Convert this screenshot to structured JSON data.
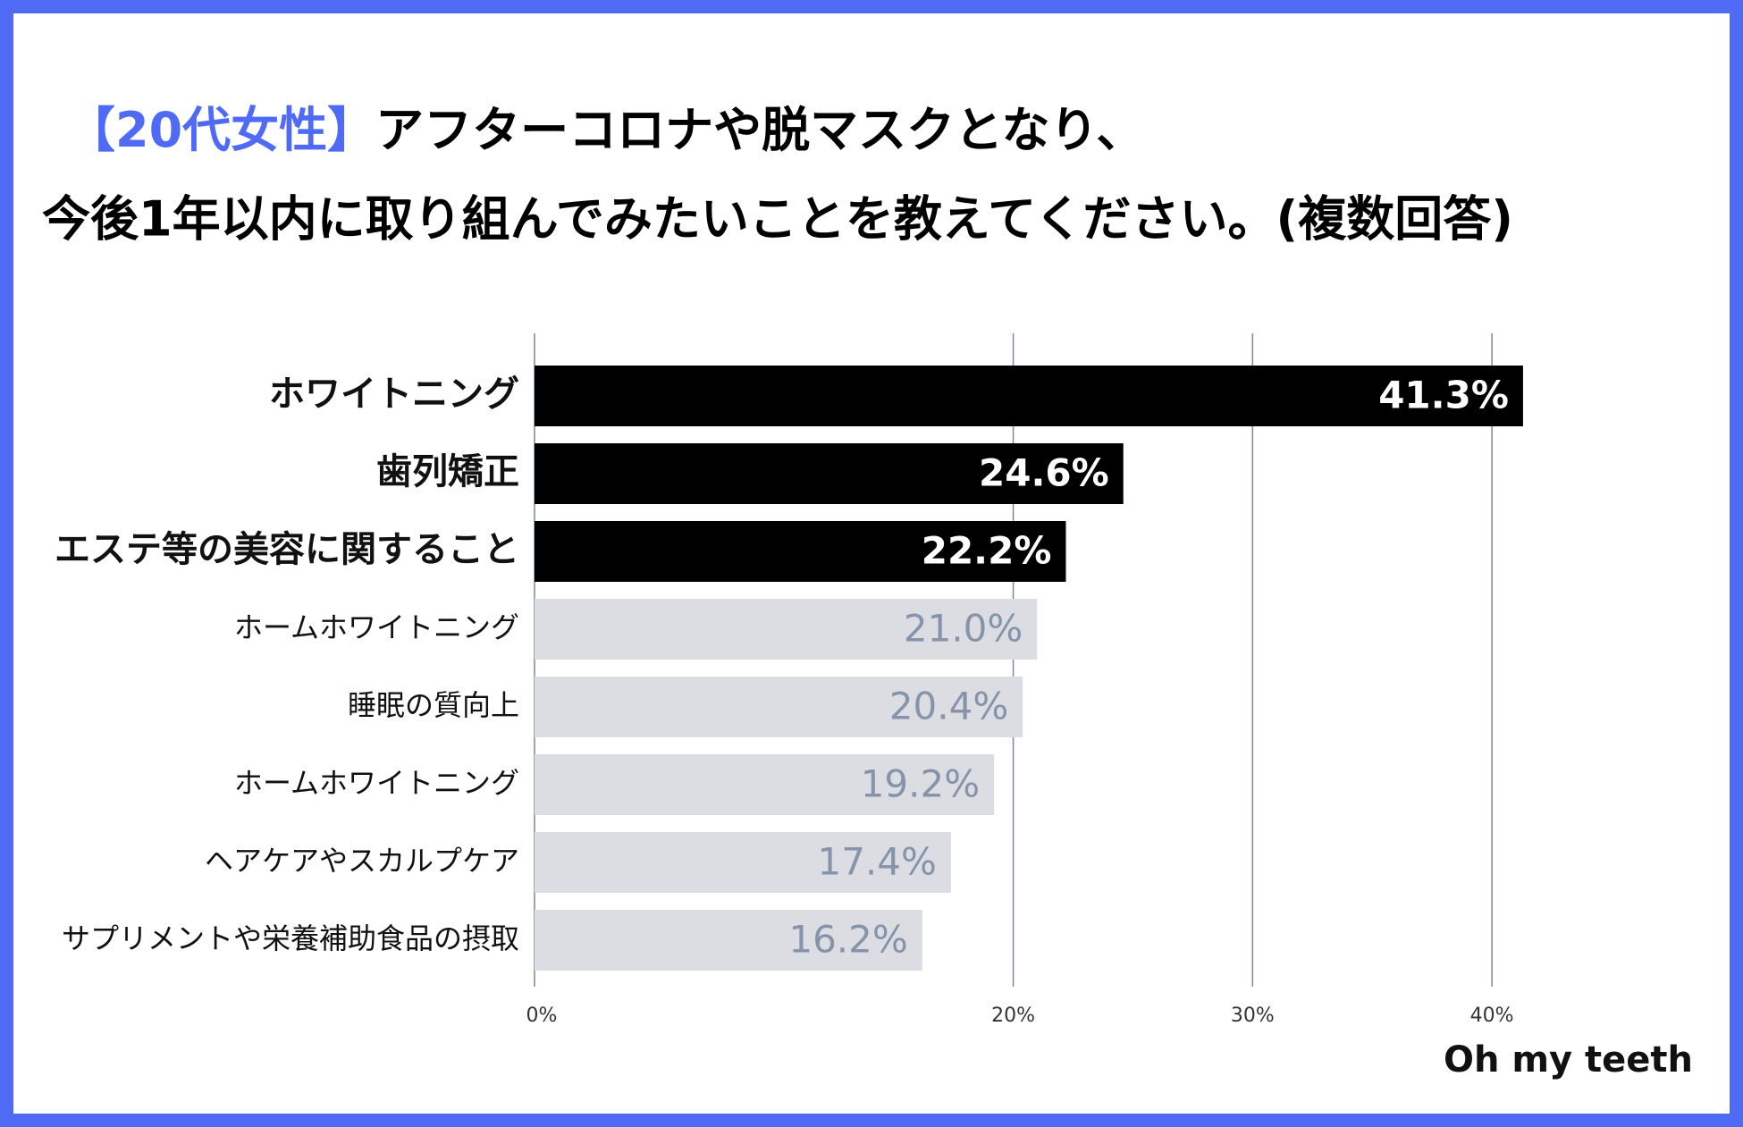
{
  "chart_data": {
    "type": "barh",
    "title_highlight": "【20代女性】",
    "title_line1": "アフターコロナや脱マスクとなり、",
    "title_line2": "今後1年以内に取り組んでみたいことを教えてください。(複数回答)",
    "categories": [
      "ホワイトニング",
      "歯列矯正",
      "エステ等の美容に関すること",
      "ホームホワイトニング",
      "睡眠の質向上",
      "ホームホワイトニング",
      "ヘアケアやスカルプケア",
      "サプリメントや栄養補助食品の摂取"
    ],
    "values": [
      41.3,
      24.6,
      22.2,
      21.0,
      20.4,
      19.2,
      17.4,
      16.2
    ],
    "value_labels": [
      "41.3%",
      "24.6%",
      "22.2%",
      "21.0%",
      "20.4%",
      "19.2%",
      "17.4%",
      "16.2%"
    ],
    "colors": [
      "#000000",
      "#000000",
      "#000000",
      "#dcdde2",
      "#dcdde2",
      "#dcdde2",
      "#dcdde2",
      "#dcdde2"
    ],
    "label_colors": [
      "#ffffff",
      "#ffffff",
      "#ffffff",
      "#8594ab",
      "#8594ab",
      "#8594ab",
      "#8594ab",
      "#8594ab"
    ],
    "highlight": [
      true,
      true,
      true,
      false,
      false,
      false,
      false,
      false
    ],
    "xlim": [
      0,
      45
    ],
    "xticks": [
      {
        "value": 0,
        "label": "0%"
      },
      {
        "value": 20,
        "label": "20%"
      },
      {
        "value": 30,
        "label": "30%"
      },
      {
        "value": 40,
        "label": "40%"
      }
    ],
    "grid": true,
    "brand": "Oh my teeth"
  }
}
